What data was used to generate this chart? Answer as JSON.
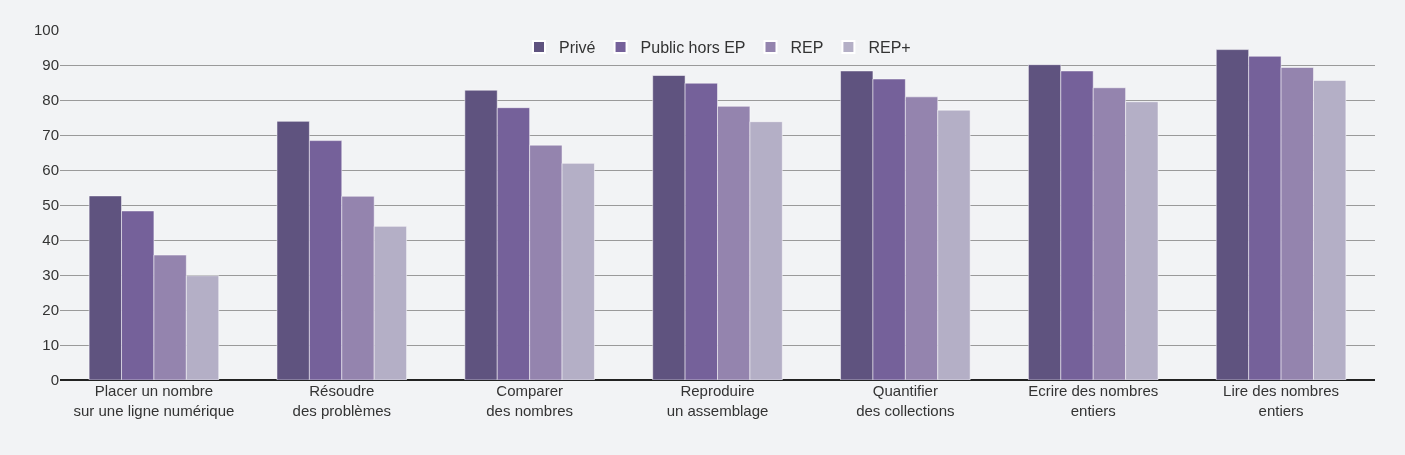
{
  "chart_data": {
    "type": "bar",
    "categories": [
      "Placer un nombre\nsur une ligne numérique",
      "Résoudre\ndes problèmes",
      "Comparer\ndes nombres",
      "Reproduire\nun assemblage",
      "Quantifier\ndes collections",
      "Ecrire des nombres\nentiers",
      "Lire des nombres\nentiers"
    ],
    "series": [
      {
        "name": "Privé",
        "color": "#5f537f",
        "values": [
          52.6,
          73.9,
          82.8,
          87.0,
          88.3,
          90.1,
          94.4
        ]
      },
      {
        "name": "Public hors EP",
        "color": "#75619a",
        "values": [
          48.3,
          68.4,
          77.8,
          84.8,
          86.0,
          88.3,
          92.5
        ]
      },
      {
        "name": "REP",
        "color": "#9484ae",
        "values": [
          35.7,
          52.5,
          67.1,
          78.2,
          80.9,
          83.5,
          89.3
        ]
      },
      {
        "name": "REP+",
        "color": "#b4afc6",
        "values": [
          29.8,
          43.9,
          61.9,
          73.8,
          77.1,
          79.5,
          85.6
        ]
      }
    ],
    "ylim": [
      0,
      100
    ],
    "yticks": [
      0,
      10,
      20,
      30,
      40,
      50,
      60,
      70,
      80,
      90,
      100
    ],
    "grid": "y",
    "legend": "top"
  }
}
